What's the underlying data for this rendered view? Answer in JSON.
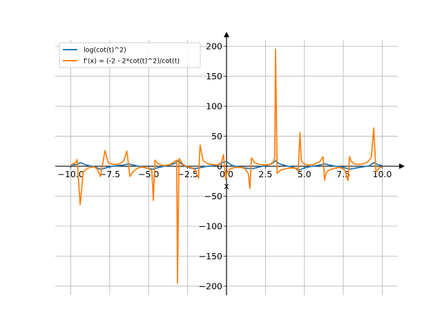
{
  "chart_data": {
    "type": "line",
    "title": "",
    "xlabel": "x",
    "ylabel": "",
    "xlim": [
      -11.0,
      11.0
    ],
    "ylim": [
      -215,
      222
    ],
    "xticks": [
      -10.0,
      -7.5,
      -5.0,
      -2.5,
      0.0,
      2.5,
      5.0,
      7.5,
      10.0
    ],
    "xtick_labels": [
      "−10.0",
      "−7.5",
      "−5.0",
      "−2.5",
      "0.0",
      "2.5",
      "5.0",
      "7.5",
      "10.0"
    ],
    "yticks": [
      -200,
      -150,
      -100,
      -50,
      0,
      50,
      100,
      150,
      200
    ],
    "ytick_labels": [
      "−200",
      "−150",
      "−100",
      "−50",
      "0",
      "50",
      "100",
      "150",
      "200"
    ],
    "grid": true,
    "legend_position": "top-left",
    "series": [
      {
        "name": "log(cot(t)^2)",
        "color": "#1f77b4",
        "x": [
          -10.0,
          -9.6,
          -9.4,
          -9.0,
          -8.5,
          -8.1,
          -7.9,
          -7.5,
          -7.0,
          -6.6,
          -6.3,
          -6.0,
          -5.5,
          -5.0,
          -4.7,
          -4.5,
          -4.0,
          -3.5,
          -3.3,
          -3.1,
          -2.9,
          -2.6,
          -2.3,
          -2.0,
          -1.6,
          -1.4,
          -1.2,
          -0.8,
          -0.4,
          -0.2,
          0.0,
          0.2,
          0.4,
          0.8,
          1.2,
          1.5,
          1.7,
          2.0,
          2.5,
          2.9,
          3.15,
          3.4,
          3.8,
          4.3,
          4.7,
          5.0,
          5.5,
          6.0,
          6.3,
          6.6,
          7.0,
          7.5,
          7.9,
          8.3,
          8.8,
          9.2,
          9.45,
          9.7,
          10.0
        ],
        "y": [
          2,
          3,
          6,
          2,
          -1,
          -5,
          -4,
          -1,
          1,
          2,
          4,
          2,
          -1,
          -4,
          -5,
          -3,
          0,
          3,
          5,
          9,
          4,
          -1,
          -3,
          -4,
          -2,
          -1,
          0,
          1,
          4,
          7,
          8,
          4,
          1,
          -1,
          -3,
          -4,
          -4,
          -2,
          1,
          4,
          9,
          4,
          1,
          -2,
          -6,
          -3,
          0,
          2,
          4,
          2,
          0,
          -2,
          -5,
          -3,
          -1,
          1,
          6,
          3,
          1
        ]
      },
      {
        "name": "f'(x) = (-2 - 2*cot(t)^2)/cot(t)",
        "color": "#ff7f0e",
        "x": [
          -10.0,
          -9.7,
          -9.6,
          -9.4,
          -9.2,
          -8.9,
          -8.5,
          -8.3,
          -8.1,
          -7.8,
          -7.6,
          -7.3,
          -7.0,
          -6.8,
          -6.6,
          -6.4,
          -6.2,
          -6.0,
          -5.7,
          -5.4,
          -5.1,
          -4.8,
          -4.7,
          -4.6,
          -4.4,
          -4.0,
          -3.6,
          -3.4,
          -3.2,
          -3.15,
          -3.05,
          -2.8,
          -2.5,
          -2.2,
          -2.0,
          -1.9,
          -1.8,
          -1.7,
          -1.5,
          -1.2,
          -0.9,
          -0.6,
          -0.35,
          -0.2,
          -0.05,
          0.05,
          0.2,
          0.5,
          0.9,
          1.2,
          1.4,
          1.5,
          1.6,
          1.8,
          2.1,
          2.5,
          2.8,
          3.0,
          3.1,
          3.15,
          3.25,
          3.5,
          4.0,
          4.4,
          4.6,
          4.72,
          4.8,
          4.9,
          5.2,
          5.6,
          6.0,
          6.2,
          6.3,
          6.4,
          6.6,
          7.0,
          7.3,
          7.6,
          7.8,
          7.9,
          8.0,
          8.2,
          8.5,
          8.8,
          9.1,
          9.3,
          9.45,
          9.6,
          9.8,
          10.0
        ],
        "y": [
          2,
          6,
          11,
          -64,
          -9,
          -3,
          -1,
          -5,
          -17,
          26,
          6,
          3,
          3,
          5,
          9,
          25,
          -17,
          -9,
          -3,
          -1,
          -3,
          -7,
          -57,
          10,
          4,
          1,
          3,
          7,
          10,
          -195,
          13,
          3,
          -1,
          -3,
          -7,
          -14,
          -20,
          35,
          9,
          4,
          3,
          2,
          5,
          19,
          -22,
          -10,
          -5,
          -2,
          -2,
          -4,
          -13,
          -37,
          14,
          6,
          3,
          2,
          3,
          7,
          15,
          195,
          -12,
          -6,
          -3,
          -3,
          -8,
          56,
          10,
          5,
          2,
          3,
          8,
          16,
          -23,
          -11,
          -6,
          -3,
          -2,
          -6,
          -24,
          16,
          8,
          4,
          3,
          4,
          8,
          15,
          64,
          -10,
          -3,
          -1
        ]
      }
    ]
  }
}
